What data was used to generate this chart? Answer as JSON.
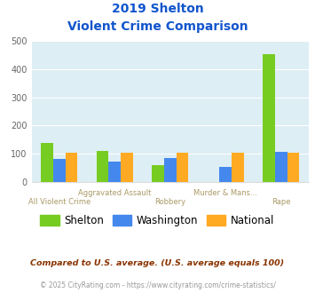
{
  "title_line1": "2019 Shelton",
  "title_line2": "Violent Crime Comparison",
  "categories_top": [
    "",
    "Aggravated Assault",
    "",
    "Murder & Mans...",
    ""
  ],
  "categories_bot": [
    "All Violent Crime",
    "",
    "Robbery",
    "",
    "Rape"
  ],
  "shelton": [
    138,
    110,
    60,
    0,
    452
  ],
  "washington": [
    82,
    72,
    85,
    52,
    106
  ],
  "national": [
    102,
    103,
    103,
    103,
    102
  ],
  "shelton_color": "#77cc22",
  "washington_color": "#4488ee",
  "national_color": "#ffaa22",
  "ylim": [
    0,
    500
  ],
  "yticks": [
    0,
    100,
    200,
    300,
    400,
    500
  ],
  "bg_color": "#ddeef5",
  "title_color": "#1155cc",
  "xlabel_color_top": "#aa9966",
  "xlabel_color_bot": "#aa9966",
  "legend_labels": [
    "Shelton",
    "Washington",
    "National"
  ],
  "footer_text1": "Compared to U.S. average. (U.S. average equals 100)",
  "footer_text2": "© 2025 CityRating.com - https://www.cityrating.com/crime-statistics/",
  "footer_color1": "#883300",
  "footer_color2": "#999999"
}
